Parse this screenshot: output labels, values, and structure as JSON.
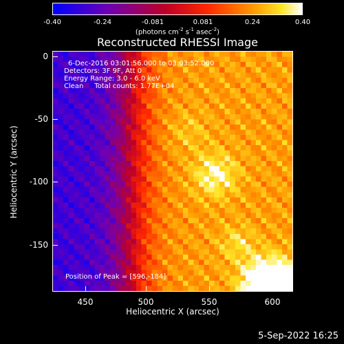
{
  "colorbar": {
    "ticks": [
      "-0.40",
      "-0.24",
      "-0.081",
      "0.081",
      "0.24",
      "0.40"
    ],
    "unit_main": "(photons cm",
    "unit_sup1": "-2",
    "unit_s": " s",
    "unit_sup2": "-1",
    "unit_asec": " asec",
    "unit_sup3": "-2",
    "unit_close": ")"
  },
  "chart_data": {
    "type": "heatmap",
    "title": "Reconstructed RHESSI Image",
    "xlabel": "Heliocentric X (arcsec)",
    "ylabel": "Heliocentric Y (arcsec)",
    "xlim": [
      422,
      614
    ],
    "ylim": [
      -188,
      4
    ],
    "xticks": [
      450,
      500,
      550,
      600
    ],
    "yticks": [
      0,
      -50,
      -100,
      -150
    ],
    "zlim": [
      -0.4,
      0.4
    ],
    "colormap": "purple-red-yellow-white",
    "peak": [
      596,
      -184
    ],
    "annotations": [
      "6-Dec-2016 03:01:56.000 to 03:03:52.000",
      "Detectors: 3F 9F, Att 0",
      "Energy Range: 3.0 - 6.0 keV",
      "Clean     Total counts: 1.77E+04",
      "Position of Peak = [596,-184]"
    ]
  },
  "footer": {
    "timestamp": "5-Sep-2022 16:25"
  }
}
